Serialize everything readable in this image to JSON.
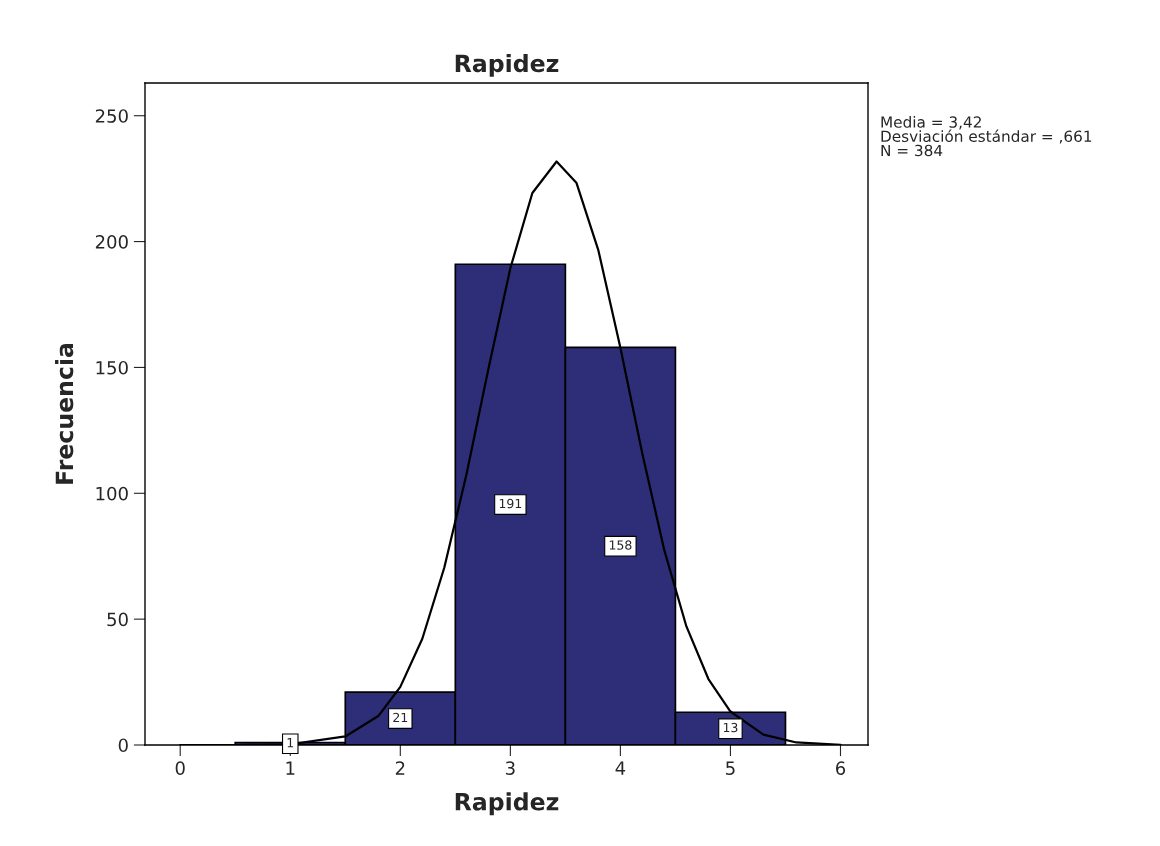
{
  "chart_data": {
    "type": "histogram",
    "title": "Rapidez",
    "xlabel": "Rapidez",
    "ylabel": "Frecuencia",
    "bins": [
      0.5,
      1.5,
      2.5,
      3.5,
      4.5,
      5.5
    ],
    "values": [
      1,
      21,
      191,
      158,
      13
    ],
    "color": "#2e2e78",
    "value_labels": [
      "1",
      "21",
      "191",
      "158",
      "13"
    ],
    "series": [
      {
        "type": "line",
        "color": "#000000",
        "x": [
          0,
          0.5,
          1.0,
          1.5,
          1.8,
          2.0,
          2.2,
          2.4,
          2.6,
          2.8,
          3.0,
          3.2,
          3.42,
          3.6,
          3.8,
          4.0,
          4.2,
          4.4,
          4.6,
          4.8,
          5.0,
          5.3,
          5.6,
          6.0
        ],
        "values": [
          0,
          0,
          0.3,
          3.4,
          11.5,
          23.1,
          42.2,
          70.5,
          107.3,
          149.3,
          189.4,
          219.3,
          231.8,
          223.4,
          196.5,
          157.8,
          115.6,
          77.2,
          47.1,
          26.2,
          13.3,
          4.1,
          1.0,
          0.1
        ]
      }
    ],
    "xlim": [
      -0.32,
      6.25
    ],
    "ylim": [
      0,
      263
    ],
    "xticks": [
      0,
      1,
      2,
      3,
      4,
      5,
      6
    ],
    "yticks": [
      0,
      50,
      100,
      150,
      200,
      250
    ],
    "grid": false,
    "annotations": [
      "Media = 3,42\nDesviación estándar = ,661\nN = 384"
    ]
  }
}
